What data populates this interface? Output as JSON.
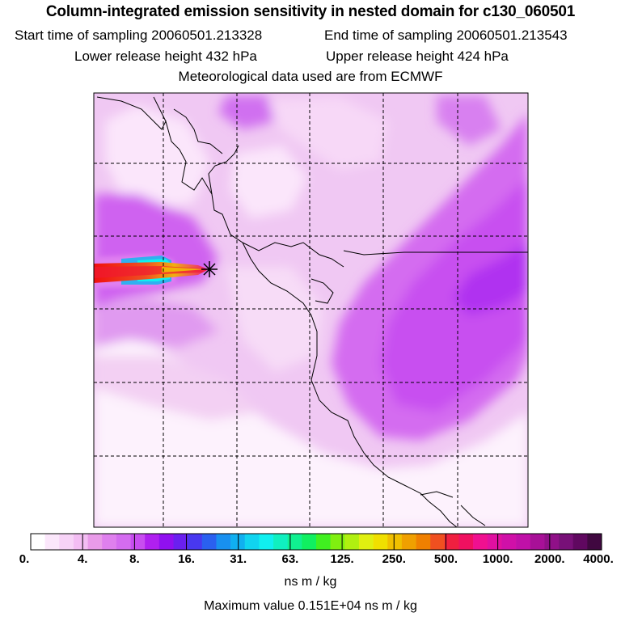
{
  "header": {
    "title": "Column-integrated emission sensitivity in nested domain for c130_060501",
    "start_time": "Start time of sampling 20060501.213328",
    "end_time": "End time of sampling 20060501.213543",
    "lower_release": "Lower release height  432 hPa",
    "upper_release": "Upper release height  424 hPa",
    "met_data": "Meteorological data used are from ECMWF"
  },
  "colorbar": {
    "labels": [
      "0.",
      "4.",
      "8.",
      "16.",
      "31.",
      "63.",
      "125.",
      "250.",
      "500.",
      "1000.",
      "2000.",
      "4000."
    ],
    "units": "ns m / kg",
    "colors": [
      "#ffffff",
      "#fbe7fb",
      "#f7d3f7",
      "#f3bdf3",
      "#e99be9",
      "#df80ee",
      "#d46cf0",
      "#c84df0",
      "#b020f0",
      "#9010f0",
      "#6a20f0",
      "#4838f0",
      "#2a60f0",
      "#1890f0",
      "#10b0f0",
      "#10d4f0",
      "#10f0f0",
      "#10f0c0",
      "#10f090",
      "#10f060",
      "#40f020",
      "#80f010",
      "#b0f010",
      "#e0f010",
      "#f0e000",
      "#f0c000",
      "#f0a000",
      "#f08000",
      "#f05020",
      "#f02040",
      "#f01060",
      "#f01090",
      "#e010a0",
      "#d010a8",
      "#c010a8",
      "#a81098",
      "#901088",
      "#781078",
      "#600860",
      "#400840"
    ]
  },
  "max_value": "Maximum value  0.151E+04 ns m / kg",
  "release_marker": "star-icon"
}
